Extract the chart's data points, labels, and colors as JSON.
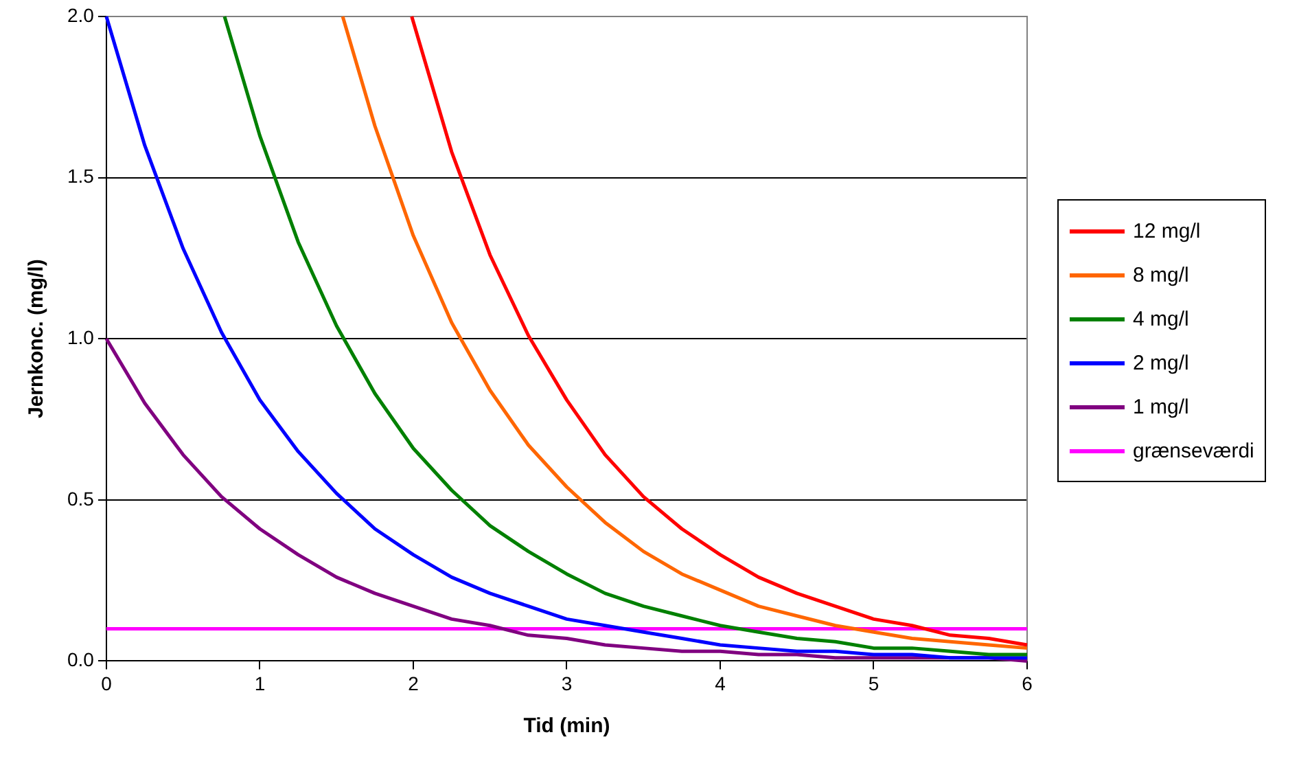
{
  "chart_data": {
    "type": "line",
    "xlabel": "Tid (min)",
    "ylabel": "Jernkonc. (mg/l)",
    "xlim": [
      0,
      6
    ],
    "xticks": [
      0,
      1,
      2,
      3,
      4,
      5,
      6
    ],
    "ylim": [
      0,
      2
    ],
    "yticks": [
      {
        "value": 0,
        "label": "0.0"
      },
      {
        "value": 0.5,
        "label": "0.5"
      },
      {
        "value": 1,
        "label": "1.0"
      },
      {
        "value": 1.5,
        "label": "1.5"
      },
      {
        "value": 2,
        "label": "2.0"
      }
    ],
    "grid": "y",
    "legend": "right",
    "marker": "none",
    "line_style": "solid",
    "series": [
      {
        "name": "12 mg/l",
        "color": "#ff0000",
        "x": [
          1.99,
          2.25,
          2.5,
          2.75,
          3,
          3.25,
          3.5,
          3.75,
          4,
          4.25,
          4.5,
          4.75,
          5,
          5.25,
          5.5,
          5.75,
          6
        ],
        "values": [
          2.0,
          1.58,
          1.26,
          1.01,
          0.81,
          0.64,
          0.51,
          0.41,
          0.33,
          0.26,
          0.21,
          0.17,
          0.13,
          0.11,
          0.08,
          0.07,
          0.05
        ]
      },
      {
        "name": "8 mg/l",
        "color": "#ff6600",
        "x": [
          1.54,
          1.75,
          2,
          2.25,
          2.5,
          2.75,
          3,
          3.25,
          3.5,
          3.75,
          4,
          4.25,
          4.5,
          4.75,
          5,
          5.25,
          5.5,
          5.75,
          6
        ],
        "values": [
          2.0,
          1.66,
          1.32,
          1.05,
          0.84,
          0.67,
          0.54,
          0.43,
          0.34,
          0.27,
          0.22,
          0.17,
          0.14,
          0.11,
          0.09,
          0.07,
          0.06,
          0.05,
          0.04
        ]
      },
      {
        "name": "4 mg/l",
        "color": "#008000",
        "x": [
          0.77,
          1,
          1.25,
          1.5,
          1.75,
          2,
          2.25,
          2.5,
          2.75,
          3,
          3.25,
          3.5,
          3.75,
          4,
          4.25,
          4.5,
          4.75,
          5,
          5.25,
          5.5,
          5.75,
          6
        ],
        "values": [
          2.0,
          1.63,
          1.3,
          1.04,
          0.83,
          0.66,
          0.53,
          0.42,
          0.34,
          0.27,
          0.21,
          0.17,
          0.14,
          0.11,
          0.09,
          0.07,
          0.06,
          0.04,
          0.04,
          0.03,
          0.02,
          0.02
        ]
      },
      {
        "name": "2 mg/l",
        "color": "#0000ff",
        "x": [
          0,
          0.25,
          0.5,
          0.75,
          1,
          1.25,
          1.5,
          1.75,
          2,
          2.25,
          2.5,
          2.75,
          3,
          3.25,
          3.5,
          3.75,
          4,
          4.25,
          4.5,
          4.75,
          5,
          5.25,
          5.5,
          5.75,
          6
        ],
        "values": [
          2.0,
          1.6,
          1.28,
          1.02,
          0.81,
          0.65,
          0.52,
          0.41,
          0.33,
          0.26,
          0.21,
          0.17,
          0.13,
          0.11,
          0.09,
          0.07,
          0.05,
          0.04,
          0.03,
          0.03,
          0.02,
          0.02,
          0.01,
          0.01,
          0.01
        ]
      },
      {
        "name": "1 mg/l",
        "color": "#800080",
        "x": [
          0,
          0.25,
          0.5,
          0.75,
          1,
          1.25,
          1.5,
          1.75,
          2,
          2.25,
          2.5,
          2.75,
          3,
          3.25,
          3.5,
          3.75,
          4,
          4.25,
          4.5,
          4.75,
          5,
          5.25,
          5.5,
          5.75,
          6
        ],
        "values": [
          1.0,
          0.8,
          0.64,
          0.51,
          0.41,
          0.33,
          0.26,
          0.21,
          0.17,
          0.13,
          0.11,
          0.08,
          0.07,
          0.05,
          0.04,
          0.03,
          0.03,
          0.02,
          0.02,
          0.01,
          0.01,
          0.01,
          0.01,
          0.01,
          0.0
        ]
      },
      {
        "name": "grænseværdi",
        "color": "#ff00ff",
        "x": [
          0,
          6
        ],
        "values": [
          0.1,
          0.1
        ]
      }
    ]
  }
}
